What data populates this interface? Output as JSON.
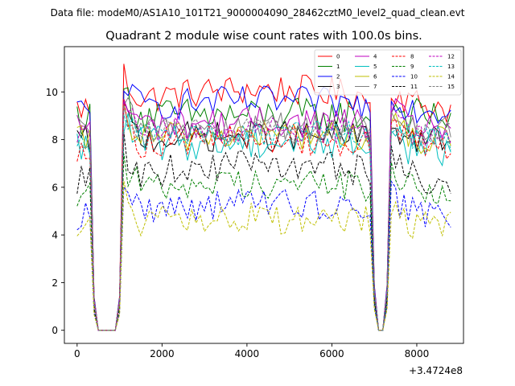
{
  "header": {
    "suptitle": "Data file: modeM0/AS1A10_101T21_9000004090_28462cztM0_level2_quad_clean.evt",
    "title": "Quadrant 2 module wise count rates with 100.0s bins.",
    "x_offset_label": "+3.4724e8"
  },
  "chart_data": {
    "type": "line",
    "title": "Quadrant 2 module wise count rates with 100.0s bins.",
    "xlabel": "",
    "ylabel": "",
    "x_offset": "+3.4724e8",
    "xlim": [
      -300,
      9100
    ],
    "ylim": [
      -0.55,
      11.9
    ],
    "x_ticks": [
      0,
      2000,
      4000,
      6000,
      8000
    ],
    "y_ticks": [
      0,
      2,
      4,
      6,
      8,
      10
    ],
    "grid": false,
    "legend_position": "upper-right",
    "legend_columns": 4,
    "time_grid": {
      "start": 0,
      "end": 8800,
      "step": 100
    },
    "profile": {
      "gaps": [
        [
          500,
          900
        ],
        [
          7100,
          7200
        ]
      ],
      "dip_points": {
        "400": 0.15,
        "1000": 0.15,
        "7000": 0.2,
        "7300": 0.2
      },
      "edge_points": {
        "300": 0.92,
        "1100": 0.97,
        "6900": 0.9,
        "7400": 0.93
      }
    },
    "series": [
      {
        "name": "0",
        "color": "#ff0000",
        "style": "solid",
        "level": 9.5,
        "amp": 0.3,
        "trend": 0.8
      },
      {
        "name": "1",
        "color": "#008000",
        "style": "solid",
        "level": 9.0,
        "amp": 0.35,
        "trend": 0.0
      },
      {
        "name": "2",
        "color": "#0000ff",
        "style": "solid",
        "level": 9.3,
        "amp": 0.3,
        "trend": 0.4
      },
      {
        "name": "3",
        "color": "#000000",
        "style": "solid",
        "level": 8.0,
        "amp": 0.3,
        "trend": 0.2
      },
      {
        "name": "4",
        "color": "#bf00bf",
        "style": "solid",
        "level": 8.6,
        "amp": 0.3,
        "trend": 0.2
      },
      {
        "name": "5",
        "color": "#00bfbf",
        "style": "solid",
        "level": 7.7,
        "amp": 0.35,
        "trend": 0.3
      },
      {
        "name": "6",
        "color": "#bfbf00",
        "style": "solid",
        "level": 8.0,
        "amp": 0.3,
        "trend": 0.3
      },
      {
        "name": "7",
        "color": "#808080",
        "style": "solid",
        "level": 8.4,
        "amp": 0.3,
        "trend": 0.2
      },
      {
        "name": "8",
        "color": "#ff0000",
        "style": "dashed",
        "level": 7.8,
        "amp": 0.3,
        "trend": 0.3
      },
      {
        "name": "9",
        "color": "#008000",
        "style": "dashed",
        "level": 5.9,
        "amp": 0.3,
        "trend": 0.4
      },
      {
        "name": "10",
        "color": "#0000ff",
        "style": "dashed",
        "level": 4.9,
        "amp": 0.3,
        "trend": 0.6
      },
      {
        "name": "11",
        "color": "#000000",
        "style": "dashed",
        "level": 6.4,
        "amp": 0.3,
        "trend": 0.7
      },
      {
        "name": "12",
        "color": "#bf00bf",
        "style": "dashed",
        "level": 8.3,
        "amp": 0.25,
        "trend": 0.2
      },
      {
        "name": "13",
        "color": "#00bfbf",
        "style": "dashed",
        "level": 8.1,
        "amp": 0.25,
        "trend": 0.2
      },
      {
        "name": "14",
        "color": "#bfbf00",
        "style": "dashed",
        "level": 4.4,
        "amp": 0.3,
        "trend": 0.4
      },
      {
        "name": "15",
        "color": "#808080",
        "style": "dashed",
        "level": 8.2,
        "amp": 0.25,
        "trend": 0.2
      }
    ]
  }
}
